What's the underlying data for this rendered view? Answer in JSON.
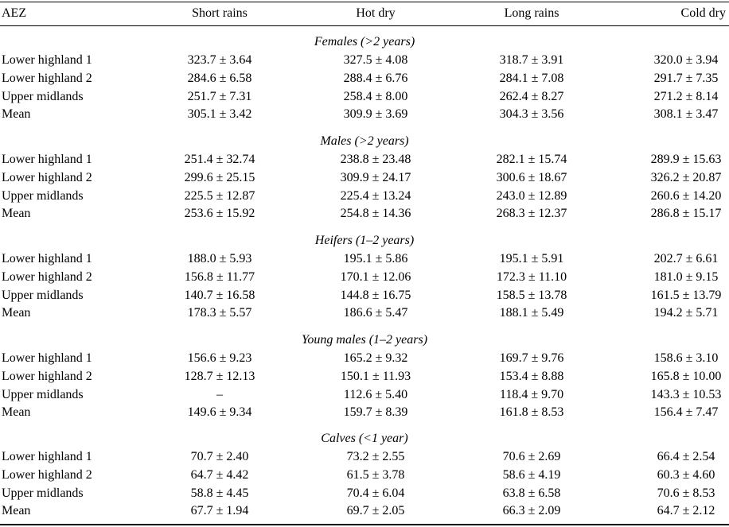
{
  "header": {
    "aez": "AEZ",
    "short_rains": "Short rains",
    "hot_dry": "Hot dry",
    "long_rains": "Long rains",
    "cold_dry": "Cold dry"
  },
  "groups": [
    {
      "title": "Females (>2 years)",
      "rows": [
        {
          "aez": "Lower highland 1",
          "short_rains": "323.7 ± 3.64",
          "hot_dry": "327.5 ± 4.08",
          "long_rains": "318.7 ± 3.91",
          "cold_dry": "320.0 ± 3.94"
        },
        {
          "aez": "Lower highland 2",
          "short_rains": "284.6 ± 6.58",
          "hot_dry": "288.4 ± 6.76",
          "long_rains": "284.1 ± 7.08",
          "cold_dry": "291.7 ± 7.35"
        },
        {
          "aez": "Upper midlands",
          "short_rains": "251.7 ± 7.31",
          "hot_dry": "258.4 ± 8.00",
          "long_rains": "262.4 ± 8.27",
          "cold_dry": "271.2 ± 8.14"
        },
        {
          "aez": "Mean",
          "short_rains": "305.1 ± 3.42",
          "hot_dry": "309.9 ± 3.69",
          "long_rains": "304.3 ± 3.56",
          "cold_dry": "308.1 ± 3.47"
        }
      ]
    },
    {
      "title": "Males (>2 years)",
      "rows": [
        {
          "aez": "Lower highland 1",
          "short_rains": "251.4 ± 32.74",
          "hot_dry": "238.8 ± 23.48",
          "long_rains": "282.1 ± 15.74",
          "cold_dry": "289.9 ± 15.63"
        },
        {
          "aez": "Lower highland 2",
          "short_rains": "299.6 ± 25.15",
          "hot_dry": "309.9 ± 24.17",
          "long_rains": "300.6 ± 18.67",
          "cold_dry": "326.2 ± 20.87"
        },
        {
          "aez": "Upper midlands",
          "short_rains": "225.5 ± 12.87",
          "hot_dry": "225.4 ± 13.24",
          "long_rains": "243.0 ± 12.89",
          "cold_dry": "260.6 ± 14.20"
        },
        {
          "aez": "Mean",
          "short_rains": "253.6 ± 15.92",
          "hot_dry": "254.8 ± 14.36",
          "long_rains": "268.3 ± 12.37",
          "cold_dry": "286.8 ± 15.17"
        }
      ]
    },
    {
      "title": "Heifers (1–2 years)",
      "rows": [
        {
          "aez": "Lower highland 1",
          "short_rains": "188.0 ± 5.93",
          "hot_dry": "195.1 ± 5.86",
          "long_rains": "195.1 ± 5.91",
          "cold_dry": "202.7 ± 6.61"
        },
        {
          "aez": "Lower highland 2",
          "short_rains": "156.8 ± 11.77",
          "hot_dry": "170.1 ± 12.06",
          "long_rains": "172.3 ± 11.10",
          "cold_dry": "181.0 ± 9.15"
        },
        {
          "aez": "Upper midlands",
          "short_rains": "140.7 ± 16.58",
          "hot_dry": "144.8 ± 16.75",
          "long_rains": "158.5 ± 13.78",
          "cold_dry": "161.5 ± 13.79"
        },
        {
          "aez": "Mean",
          "short_rains": "178.3 ± 5.57",
          "hot_dry": "186.6 ± 5.47",
          "long_rains": "188.1 ± 5.49",
          "cold_dry": "194.2 ± 5.71"
        }
      ]
    },
    {
      "title": "Young males (1–2 years)",
      "rows": [
        {
          "aez": "Lower highland 1",
          "short_rains": "156.6 ± 9.23",
          "hot_dry": "165.2 ± 9.32",
          "long_rains": "169.7 ± 9.76",
          "cold_dry": "158.6 ± 3.10"
        },
        {
          "aez": "Lower highland 2",
          "short_rains": "128.7 ± 12.13",
          "hot_dry": "150.1 ± 11.93",
          "long_rains": "153.4 ± 8.88",
          "cold_dry": "165.8 ± 10.00"
        },
        {
          "aez": "Upper midlands",
          "short_rains": "–",
          "hot_dry": "112.6 ± 5.40",
          "long_rains": "118.4 ± 9.70",
          "cold_dry": "143.3 ± 10.53"
        },
        {
          "aez": "Mean",
          "short_rains": "149.6 ± 9.34",
          "hot_dry": "159.7 ± 8.39",
          "long_rains": "161.8 ± 8.53",
          "cold_dry": "156.4 ± 7.47"
        }
      ]
    },
    {
      "title": "Calves (<1 year)",
      "rows": [
        {
          "aez": "Lower highland 1",
          "short_rains": "70.7 ± 2.40",
          "hot_dry": "73.2 ± 2.55",
          "long_rains": "70.6 ± 2.69",
          "cold_dry": "66.4 ± 2.54"
        },
        {
          "aez": "Lower highland 2",
          "short_rains": "64.7 ± 4.42",
          "hot_dry": "61.5 ± 3.78",
          "long_rains": "58.6 ± 4.19",
          "cold_dry": "60.3 ± 4.60"
        },
        {
          "aez": "Upper midlands",
          "short_rains": "58.8 ± 4.45",
          "hot_dry": "70.4 ± 6.04",
          "long_rains": "63.8 ± 6.58",
          "cold_dry": "70.6 ± 8.53"
        },
        {
          "aez": "Mean",
          "short_rains": "67.7 ± 1.94",
          "hot_dry": "69.7 ± 2.05",
          "long_rains": "66.3 ± 2.09",
          "cold_dry": "64.7 ± 2.12"
        }
      ]
    }
  ]
}
